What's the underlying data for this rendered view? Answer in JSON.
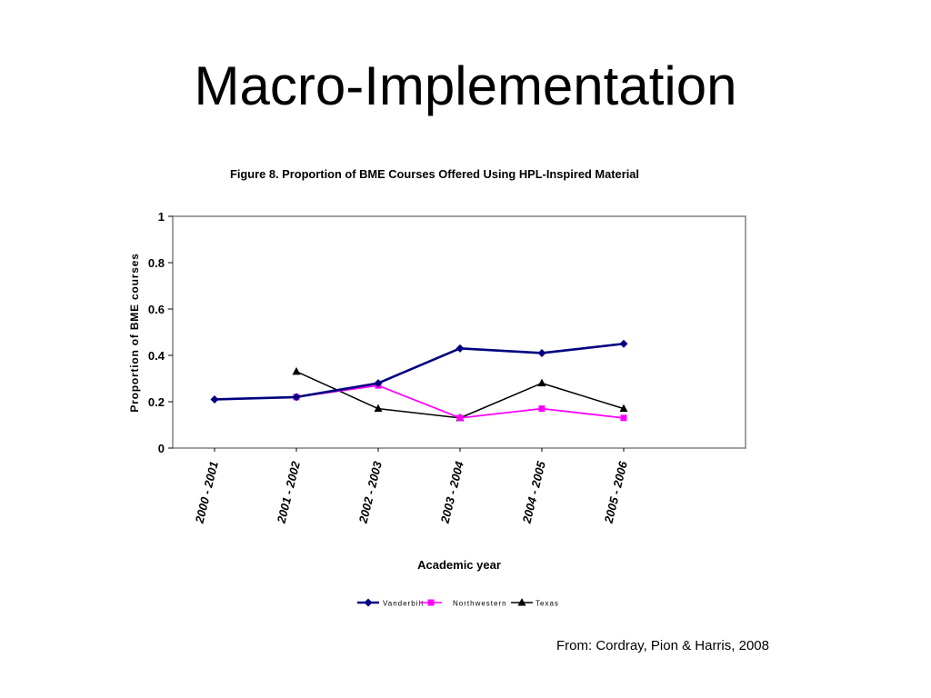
{
  "slide": {
    "title": "Macro-Implementation",
    "citation": "From: Cordray, Pion & Harris, 2008"
  },
  "chart_data": {
    "type": "line",
    "title": "Figure 8.  Proportion of BME Courses Offered Using HPL-Inspired Material",
    "xlabel": "Academic year",
    "ylabel": "Proportion of BME courses",
    "categories": [
      "2000 - 2001",
      "2001 - 2002",
      "2002 - 2003",
      "2003 - 2004",
      "2004 - 2005",
      "2005 - 2006"
    ],
    "ylim": [
      0,
      1
    ],
    "yticks": [
      "0",
      "0.2",
      "0.4",
      "0.6",
      "0.8",
      "1"
    ],
    "grid": false,
    "legend_position": "bottom",
    "series": [
      {
        "name": "Vanderbilt",
        "color": "#000080",
        "marker": "diamond",
        "values": [
          0.21,
          0.22,
          0.28,
          0.43,
          0.41,
          0.45
        ]
      },
      {
        "name": "Northwestern",
        "color": "#FF00FF",
        "marker": "square",
        "values": [
          null,
          0.22,
          0.27,
          0.13,
          0.17,
          0.13
        ]
      },
      {
        "name": "Texas",
        "color": "#000000",
        "marker": "triangle",
        "values": [
          null,
          0.33,
          0.17,
          0.13,
          0.28,
          0.17
        ]
      }
    ]
  }
}
